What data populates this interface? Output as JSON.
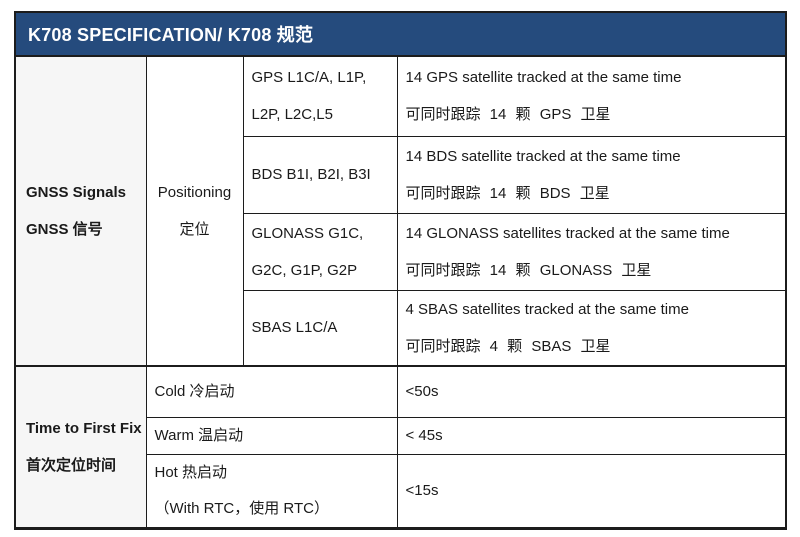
{
  "header": {
    "title": "K708 SPECIFICATION/ K708 规范"
  },
  "colors": {
    "header_bg": "#254B7D",
    "header_text": "#FFFFFF",
    "border": "#1C1C1C",
    "category_bg": "#F6F6F6",
    "body_text": "#1A1A1A",
    "page_bg": "#FFFFFF"
  },
  "table": {
    "gnss": {
      "category_en": "GNSS Signals",
      "category_cn": "GNSS 信号",
      "sub_en": "Positioning",
      "sub_cn": "定位",
      "rows": [
        {
          "signal_lines": [
            "GPS L1C/A, L1P,",
            "L2P, L2C,L5"
          ],
          "desc_en": "14 GPS satellite tracked at the same time",
          "desc_cn": "可同时跟踪 14 颗 GPS 卫星"
        },
        {
          "signal_lines": [
            "BDS B1I, B2I, B3I"
          ],
          "desc_en": "14 BDS satellite tracked at the same time",
          "desc_cn": "可同时跟踪 14 颗 BDS 卫星"
        },
        {
          "signal_lines": [
            "GLONASS G1C,",
            "G2C, G1P, G2P"
          ],
          "desc_en": "14 GLONASS satellites tracked at the same time",
          "desc_cn": "可同时跟踪 14 颗 GLONASS 卫星"
        },
        {
          "signal_lines": [
            "SBAS L1C/A"
          ],
          "desc_en": "4 SBAS satellites tracked at the same time",
          "desc_cn": "可同时跟踪 4 颗 SBAS 卫星"
        }
      ]
    },
    "ttff": {
      "category_en": "Time to First Fix",
      "category_cn": "首次定位时间",
      "rows": [
        {
          "label": "Cold 冷启动",
          "value": "<50s"
        },
        {
          "label": "Warm 温启动",
          "value": "< 45s"
        },
        {
          "label": "Hot 热启动",
          "label_line2": "（With RTC，使用 RTC）",
          "value": "<15s"
        }
      ]
    }
  }
}
